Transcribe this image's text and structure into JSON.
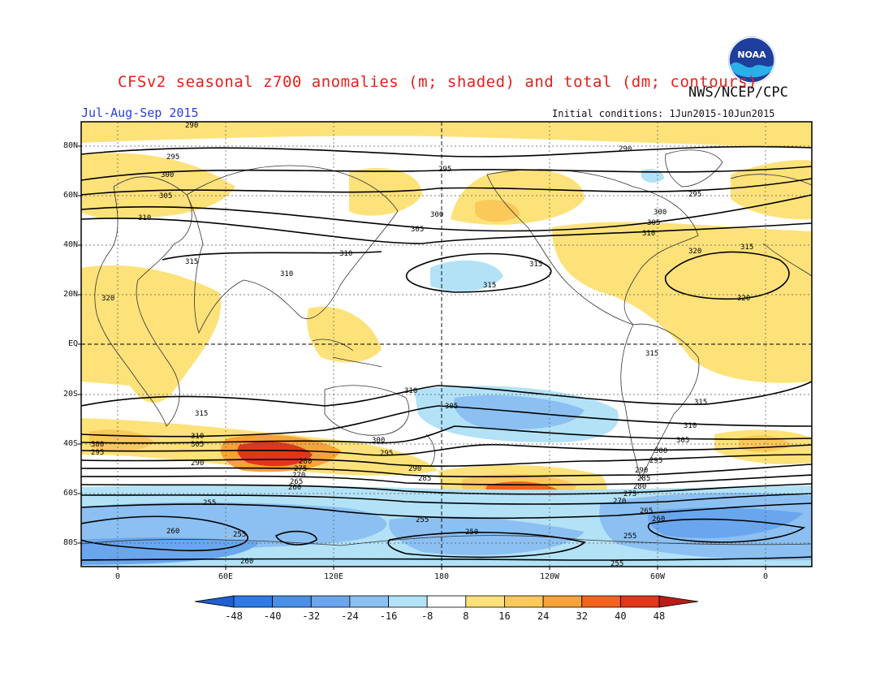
{
  "title": "CFSv2 seasonal z700 anomalies (m; shaded) and total (dm; contours)",
  "agency": "NWS/NCEP/CPC",
  "period": "Jul-Aug-Sep 2015",
  "initial_conditions": "Initial conditions: 1Jun2015-10Jun2015",
  "logo_text": "NOAA",
  "lat_labels": [
    "80N",
    "60N",
    "40N",
    "20N",
    "EQ",
    "20S",
    "40S",
    "60S",
    "80S"
  ],
  "lon_labels": [
    "0",
    "60E",
    "120E",
    "180",
    "120W",
    "60W",
    "0"
  ],
  "colorbar": {
    "labels": [
      "-48",
      "-40",
      "-32",
      "-24",
      "-16",
      "-8",
      "8",
      "16",
      "24",
      "32",
      "40",
      "48"
    ],
    "colors": [
      "#1f5fcf",
      "#2e7ae6",
      "#4a90e8",
      "#6aa6ee",
      "#8cc0f2",
      "#b3e2f7",
      "#ffffff",
      "#fde27a",
      "#fbc85a",
      "#f8a23a",
      "#f2631e",
      "#e0361a",
      "#b91c18"
    ]
  },
  "contour_labels": [
    "290",
    "295",
    "300",
    "305",
    "310",
    "315",
    "320",
    "315",
    "310",
    "305",
    "300",
    "295",
    "290",
    "285",
    "280",
    "275",
    "270",
    "265",
    "260",
    "255",
    "250"
  ]
}
